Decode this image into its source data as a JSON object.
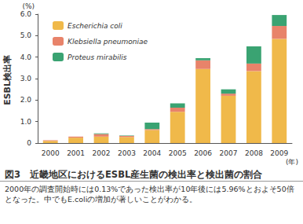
{
  "chart_data": {
    "type": "bar",
    "stacked": true,
    "title": "図3　近畿地区におけるESBL産生菌の検出率と検出菌の割合",
    "subtitle": "2000年の調査開始時には0.13%であった検出率が10年後には5.96%とおよそ50倍となった。中でもE.coliの増加が著しいことがわかる。",
    "y_label": "ESBL検出率",
    "y_unit": "(%)",
    "x_label": "(年)",
    "categories": [
      "2000",
      "2001",
      "2002",
      "2003",
      "2004",
      "2005",
      "2006",
      "2007",
      "2008",
      "2009"
    ],
    "series": [
      {
        "name": "Escherichia coli",
        "color": "#f0b94a",
        "values": [
          0.1,
          0.25,
          0.3,
          0.28,
          0.6,
          1.45,
          3.45,
          2.2,
          3.35,
          4.85
        ]
      },
      {
        "name": "Klebsiella pneumoniae",
        "color": "#e8836a",
        "values": [
          0.03,
          0.05,
          0.12,
          0.05,
          0.05,
          0.2,
          0.4,
          0.1,
          0.35,
          0.6
        ]
      },
      {
        "name": "Proteus mirabilis",
        "color": "#3aa372",
        "values": [
          0,
          0,
          0.03,
          0.02,
          0.3,
          0.2,
          0.1,
          0.2,
          0.8,
          0.51
        ]
      }
    ],
    "ylim": [
      0,
      6
    ],
    "yticks": [
      0,
      {
        "value": 1,
        "label": "1.0"
      },
      {
        "value": 2,
        "label": "2.0"
      },
      {
        "value": 3,
        "label": "3.0"
      },
      {
        "value": 4,
        "label": "4.0"
      },
      {
        "value": 5,
        "label": "5.0"
      },
      {
        "value": 6,
        "label": "6.0"
      }
    ],
    "grid": false,
    "legend": "top-left"
  }
}
